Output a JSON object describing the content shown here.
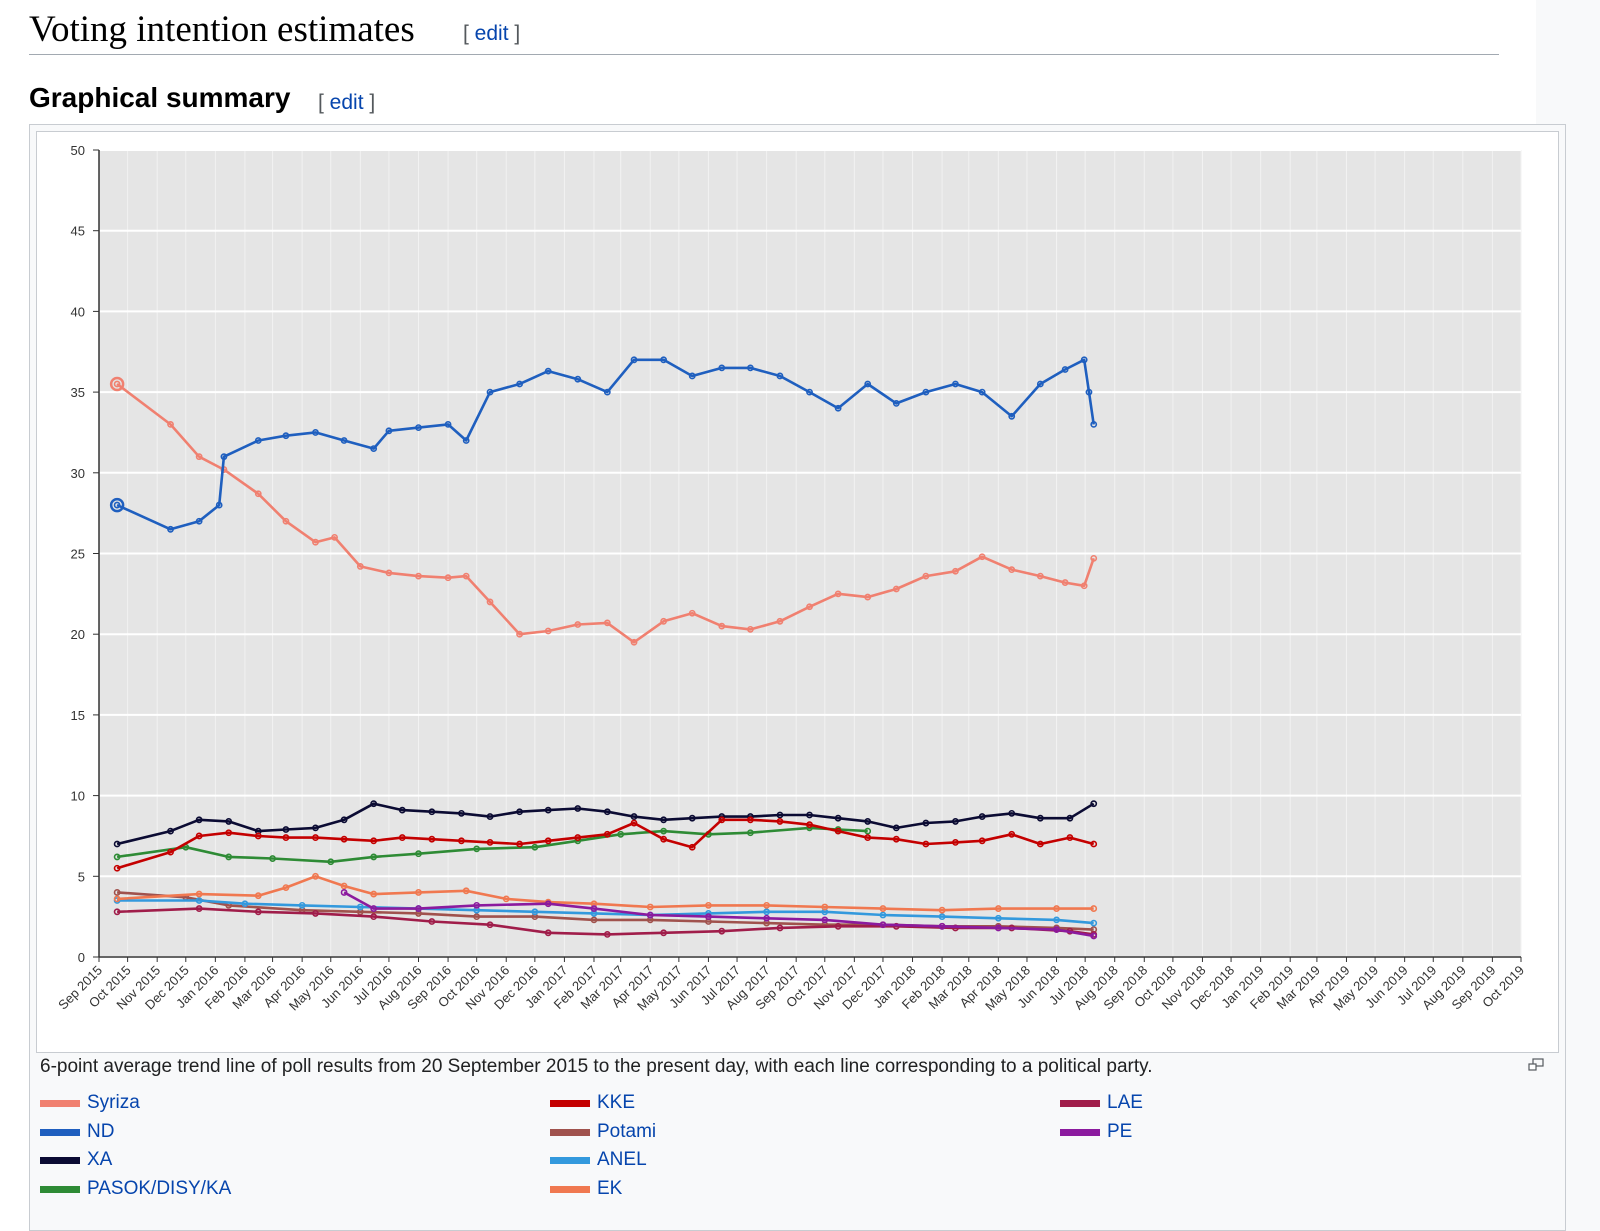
{
  "page": {
    "section_title": "Voting intention estimates",
    "subsection_title": "Graphical summary",
    "edit_label": "edit"
  },
  "caption": "6-point average trend line of poll results from 20 September 2015 to the present day, with each line corresponding to a political party.",
  "icons": {
    "enlarge": "magnify-icon"
  },
  "chart_data": {
    "type": "line",
    "title": "",
    "xlabel": "",
    "ylabel": "",
    "ylim": [
      0,
      50
    ],
    "yticks": [
      0,
      5,
      10,
      15,
      20,
      25,
      30,
      35,
      40,
      45,
      50
    ],
    "xlim": [
      "2015-09-01",
      "2019-10-01"
    ],
    "xticks": [
      "Sep 2015",
      "Oct 2015",
      "Nov 2015",
      "Dec 2015",
      "Jan 2016",
      "Feb 2016",
      "Mar 2016",
      "Apr 2016",
      "May 2016",
      "Jun 2016",
      "Jul 2016",
      "Aug 2016",
      "Sep 2016",
      "Oct 2016",
      "Nov 2016",
      "Dec 2016",
      "Jan 2017",
      "Feb 2017",
      "Mar 2017",
      "Apr 2017",
      "May 2017",
      "Jun 2017",
      "Jul 2017",
      "Aug 2017",
      "Sep 2017",
      "Oct 2017",
      "Nov 2017",
      "Dec 2017",
      "Jan 2018",
      "Feb 2018",
      "Mar 2018",
      "Apr 2018",
      "May 2018",
      "Jun 2018",
      "Jul 2018",
      "Aug 2018",
      "Sep 2018",
      "Oct 2018",
      "Nov 2018",
      "Dec 2018",
      "Jan 2019",
      "Feb 2019",
      "Mar 2019",
      "Apr 2019",
      "May 2019",
      "Jun 2019",
      "Jul 2019",
      "Aug 2019",
      "Sep 2019",
      "Oct 2019"
    ],
    "grid": true,
    "background": "#e5e5e5",
    "legend_position": "bottom",
    "series": [
      {
        "name": "Syriza",
        "color": "#f08070",
        "x": [
          "2015-09-20",
          "2015-11-15",
          "2015-12-15",
          "2016-01-10",
          "2016-02-15",
          "2016-03-15",
          "2016-04-15",
          "2016-05-05",
          "2016-06-01",
          "2016-07-01",
          "2016-08-01",
          "2016-09-01",
          "2016-09-20",
          "2016-10-15",
          "2016-11-15",
          "2016-12-15",
          "2017-01-15",
          "2017-02-15",
          "2017-03-15",
          "2017-04-15",
          "2017-05-15",
          "2017-06-15",
          "2017-07-15",
          "2017-08-15",
          "2017-09-15",
          "2017-10-15",
          "2017-11-15",
          "2017-12-15",
          "2018-01-15",
          "2018-02-15",
          "2018-03-15",
          "2018-04-15",
          "2018-05-15",
          "2018-06-10",
          "2018-06-30",
          "2018-07-10"
        ],
        "values": [
          35.5,
          33.0,
          31.0,
          30.2,
          28.7,
          27.0,
          25.7,
          26.0,
          24.2,
          23.8,
          23.6,
          23.5,
          23.6,
          22.0,
          20.0,
          20.2,
          20.6,
          20.7,
          19.5,
          20.8,
          21.3,
          20.5,
          20.3,
          20.8,
          21.7,
          22.5,
          22.3,
          22.8,
          23.6,
          23.9,
          24.8,
          24.0,
          23.6,
          23.2,
          23.0,
          24.7
        ]
      },
      {
        "name": "ND",
        "color": "#1f5fbf",
        "x": [
          "2015-09-20",
          "2015-11-15",
          "2015-12-15",
          "2016-01-05",
          "2016-01-10",
          "2016-02-15",
          "2016-03-15",
          "2016-04-15",
          "2016-05-15",
          "2016-06-15",
          "2016-07-01",
          "2016-08-01",
          "2016-09-01",
          "2016-09-20",
          "2016-10-15",
          "2016-11-15",
          "2016-12-15",
          "2017-01-15",
          "2017-02-15",
          "2017-03-15",
          "2017-04-15",
          "2017-05-15",
          "2017-06-15",
          "2017-07-15",
          "2017-08-15",
          "2017-09-15",
          "2017-10-15",
          "2017-11-15",
          "2017-12-15",
          "2018-01-15",
          "2018-02-15",
          "2018-03-15",
          "2018-04-15",
          "2018-05-15",
          "2018-06-10",
          "2018-06-30",
          "2018-07-05",
          "2018-07-10"
        ],
        "values": [
          28.0,
          26.5,
          27.0,
          28.0,
          31.0,
          32.0,
          32.3,
          32.5,
          32.0,
          31.5,
          32.6,
          32.8,
          33.0,
          32.0,
          35.0,
          35.5,
          36.3,
          35.8,
          35.0,
          37.0,
          37.0,
          36.0,
          36.5,
          36.5,
          36.0,
          35.0,
          34.0,
          35.5,
          34.3,
          35.0,
          35.5,
          35.0,
          33.5,
          35.5,
          36.4,
          37.0,
          35.0,
          33.0
        ]
      },
      {
        "name": "XA",
        "color": "#0b0b33",
        "x": [
          "2015-09-20",
          "2015-11-15",
          "2015-12-15",
          "2016-01-15",
          "2016-02-15",
          "2016-03-15",
          "2016-04-15",
          "2016-05-15",
          "2016-06-15",
          "2016-07-15",
          "2016-08-15",
          "2016-09-15",
          "2016-10-15",
          "2016-11-15",
          "2016-12-15",
          "2017-01-15",
          "2017-02-15",
          "2017-03-15",
          "2017-04-15",
          "2017-05-15",
          "2017-06-15",
          "2017-07-15",
          "2017-08-15",
          "2017-09-15",
          "2017-10-15",
          "2017-11-15",
          "2017-12-15",
          "2018-01-15",
          "2018-02-15",
          "2018-03-15",
          "2018-04-15",
          "2018-05-15",
          "2018-06-15",
          "2018-07-10"
        ],
        "values": [
          7.0,
          7.8,
          8.5,
          8.4,
          7.8,
          7.9,
          8.0,
          8.5,
          9.5,
          9.1,
          9.0,
          8.9,
          8.7,
          9.0,
          9.1,
          9.2,
          9.0,
          8.7,
          8.5,
          8.6,
          8.7,
          8.7,
          8.8,
          8.8,
          8.6,
          8.4,
          8.0,
          8.3,
          8.4,
          8.7,
          8.9,
          8.6,
          8.6,
          9.5
        ]
      },
      {
        "name": "PASOK/DISY/KA",
        "color": "#2e8b35",
        "x": [
          "2015-09-20",
          "2015-12-01",
          "2016-01-15",
          "2016-03-01",
          "2016-05-01",
          "2016-06-15",
          "2016-08-01",
          "2016-10-01",
          "2016-12-01",
          "2017-01-15",
          "2017-03-01",
          "2017-04-15",
          "2017-06-01",
          "2017-07-15",
          "2017-09-15",
          "2017-10-15",
          "2017-11-15"
        ],
        "values": [
          6.2,
          6.8,
          6.2,
          6.1,
          5.9,
          6.2,
          6.4,
          6.7,
          6.8,
          7.2,
          7.6,
          7.8,
          7.6,
          7.7,
          8.0,
          7.9,
          7.8
        ]
      },
      {
        "name": "KKE",
        "color": "#c40000",
        "x": [
          "2015-09-20",
          "2015-11-15",
          "2015-12-15",
          "2016-01-15",
          "2016-02-15",
          "2016-03-15",
          "2016-04-15",
          "2016-05-15",
          "2016-06-15",
          "2016-07-15",
          "2016-08-15",
          "2016-09-15",
          "2016-10-15",
          "2016-11-15",
          "2016-12-15",
          "2017-01-15",
          "2017-02-15",
          "2017-03-15",
          "2017-04-15",
          "2017-05-15",
          "2017-06-15",
          "2017-07-15",
          "2017-08-15",
          "2017-09-15",
          "2017-10-15",
          "2017-11-15",
          "2017-12-15",
          "2018-01-15",
          "2018-02-15",
          "2018-03-15",
          "2018-04-15",
          "2018-05-15",
          "2018-06-15",
          "2018-07-10"
        ],
        "values": [
          5.5,
          6.5,
          7.5,
          7.7,
          7.5,
          7.4,
          7.4,
          7.3,
          7.2,
          7.4,
          7.3,
          7.2,
          7.1,
          7.0,
          7.2,
          7.4,
          7.6,
          8.3,
          7.3,
          6.8,
          8.5,
          8.5,
          8.4,
          8.2,
          7.8,
          7.4,
          7.3,
          7.0,
          7.1,
          7.2,
          7.6,
          7.0,
          7.4,
          7.0
        ]
      },
      {
        "name": "Potami",
        "color": "#a0524d",
        "x": [
          "2015-09-20",
          "2015-12-01",
          "2016-01-15",
          "2016-04-01",
          "2016-06-01",
          "2016-08-01",
          "2016-10-01",
          "2016-12-01",
          "2017-02-01",
          "2017-04-01",
          "2017-06-01",
          "2017-08-01",
          "2017-10-01",
          "2017-12-01",
          "2018-02-01",
          "2018-04-01",
          "2018-06-01",
          "2018-07-10"
        ],
        "values": [
          4.0,
          3.7,
          3.2,
          2.9,
          2.8,
          2.7,
          2.5,
          2.5,
          2.3,
          2.3,
          2.2,
          2.1,
          2.0,
          2.0,
          1.9,
          1.9,
          1.8,
          1.7
        ]
      },
      {
        "name": "ANEL",
        "color": "#3399dd",
        "x": [
          "2015-09-20",
          "2015-12-15",
          "2016-02-01",
          "2016-04-01",
          "2016-06-01",
          "2016-08-01",
          "2016-10-01",
          "2016-12-01",
          "2017-02-01",
          "2017-04-01",
          "2017-06-01",
          "2017-08-01",
          "2017-10-01",
          "2017-12-01",
          "2018-02-01",
          "2018-04-01",
          "2018-06-01",
          "2018-07-10"
        ],
        "values": [
          3.5,
          3.5,
          3.3,
          3.2,
          3.1,
          3.0,
          2.9,
          2.8,
          2.7,
          2.6,
          2.7,
          2.8,
          2.8,
          2.6,
          2.5,
          2.4,
          2.3,
          2.1
        ]
      },
      {
        "name": "EK",
        "color": "#f07850",
        "x": [
          "2015-09-20",
          "2015-12-15",
          "2016-02-15",
          "2016-03-15",
          "2016-04-15",
          "2016-05-15",
          "2016-06-15",
          "2016-08-01",
          "2016-09-20",
          "2016-11-01",
          "2016-12-15",
          "2017-02-01",
          "2017-04-01",
          "2017-06-01",
          "2017-08-01",
          "2017-10-01",
          "2017-12-01",
          "2018-02-01",
          "2018-04-01",
          "2018-06-01",
          "2018-07-10"
        ],
        "values": [
          3.6,
          3.9,
          3.8,
          4.3,
          5.0,
          4.4,
          3.9,
          4.0,
          4.1,
          3.6,
          3.4,
          3.3,
          3.1,
          3.2,
          3.2,
          3.1,
          3.0,
          2.9,
          3.0,
          3.0,
          3.0
        ]
      },
      {
        "name": "LAE",
        "color": "#a01d4a",
        "x": [
          "2015-09-20",
          "2015-12-15",
          "2016-02-15",
          "2016-04-15",
          "2016-06-15",
          "2016-08-15",
          "2016-10-15",
          "2016-12-15",
          "2017-02-15",
          "2017-04-15",
          "2017-06-15",
          "2017-08-15",
          "2017-10-15",
          "2017-12-15",
          "2018-02-15",
          "2018-04-15",
          "2018-06-15",
          "2018-07-10"
        ],
        "values": [
          2.8,
          3.0,
          2.8,
          2.7,
          2.5,
          2.2,
          2.0,
          1.5,
          1.4,
          1.5,
          1.6,
          1.8,
          1.9,
          1.9,
          1.8,
          1.8,
          1.6,
          1.4
        ]
      },
      {
        "name": "PE",
        "color": "#8b1a9e",
        "x": [
          "2016-05-15",
          "2016-06-15",
          "2016-08-01",
          "2016-10-01",
          "2016-12-15",
          "2017-02-01",
          "2017-04-01",
          "2017-06-01",
          "2017-08-01",
          "2017-10-01",
          "2017-12-01",
          "2018-02-01",
          "2018-04-01",
          "2018-06-01",
          "2018-07-10"
        ],
        "values": [
          4.0,
          3.0,
          3.0,
          3.2,
          3.3,
          3.0,
          2.6,
          2.5,
          2.4,
          2.3,
          2.0,
          1.9,
          1.8,
          1.7,
          1.3
        ]
      }
    ],
    "labels": {
      "syriza": "Syriza",
      "nd": "ND",
      "xa": "XA",
      "pasok": "PASOK/DISY/KA",
      "kke": "KKE",
      "potami": "Potami",
      "anel": "ANEL",
      "ek": "EK",
      "lae": "LAE",
      "pe": "PE"
    }
  }
}
